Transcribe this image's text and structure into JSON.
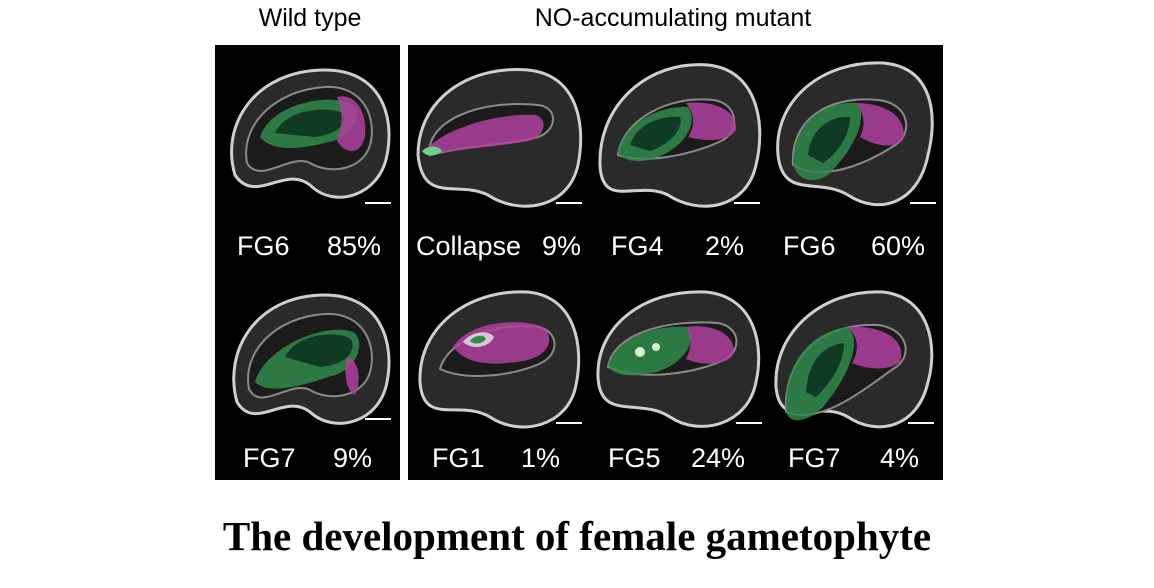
{
  "headers": {
    "wild_type": "Wild type",
    "mutant": "NO-accumulating mutant"
  },
  "wild_type": [
    {
      "stage": "FG6",
      "percent": "85%"
    },
    {
      "stage": "FG7",
      "percent": "9%"
    }
  ],
  "mutant": {
    "row1": [
      {
        "stage": "Collapse",
        "percent": "9%"
      },
      {
        "stage": "FG4",
        "percent": "2%"
      },
      {
        "stage": "FG6",
        "percent": "60%"
      }
    ],
    "row2": [
      {
        "stage": "FG1",
        "percent": "1%"
      },
      {
        "stage": "FG5",
        "percent": "24%"
      },
      {
        "stage": "FG7",
        "percent": "4%"
      }
    ]
  },
  "colors": {
    "gametophyte_green": "#2f8a4a",
    "gametophyte_magenta": "#b0409e",
    "tissue_gray": "#9a9a9a"
  },
  "caption": "The development of female gametophyte"
}
